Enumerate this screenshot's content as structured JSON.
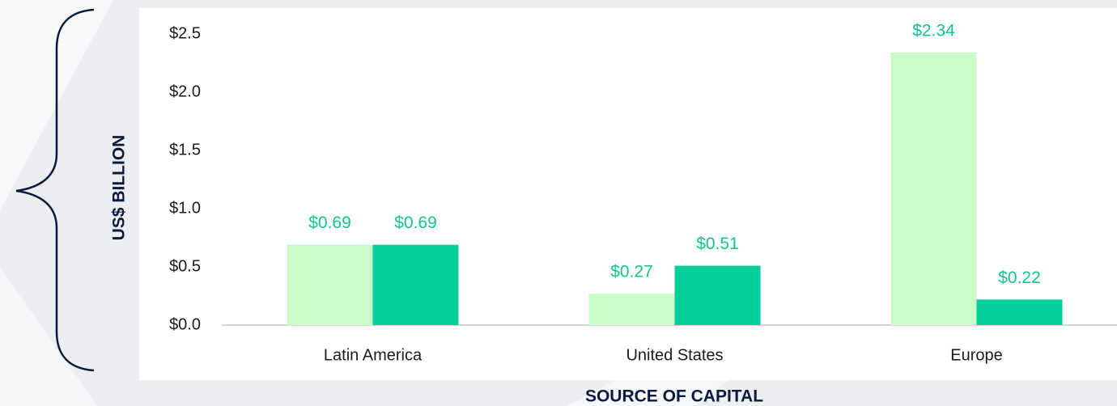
{
  "chart_data": {
    "type": "bar",
    "y_label": "US$ BILLION",
    "x_label": "SOURCE OF CAPITAL",
    "categories": [
      "Latin America",
      "United States",
      "Europe"
    ],
    "series": [
      {
        "color": "#c9fcc8",
        "values": [
          0.69,
          0.27,
          2.34
        ],
        "value_labels": [
          "$0.69",
          "$0.27",
          "$2.34"
        ],
        "label_color": "#13c48f"
      },
      {
        "color": "#03cf9a",
        "values": [
          0.69,
          0.51,
          0.22
        ],
        "value_labels": [
          "$0.69",
          "$0.51",
          "$0.22"
        ],
        "label_color": "#13c48f"
      }
    ],
    "ylim": [
      0,
      2.5
    ],
    "yticks": [
      {
        "value": 0,
        "label": "$0.0"
      },
      {
        "value": 0.5,
        "label": "$0.5"
      },
      {
        "value": 1.0,
        "label": "$1.0"
      },
      {
        "value": 1.5,
        "label": "$1.5"
      },
      {
        "value": 2.0,
        "label": "$2.0"
      },
      {
        "value": 2.5,
        "label": "$2.5"
      }
    ],
    "grid": false
  }
}
